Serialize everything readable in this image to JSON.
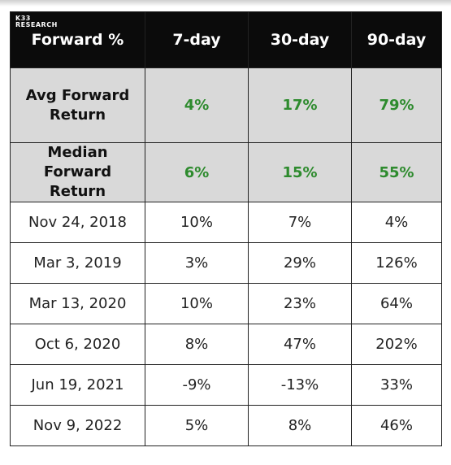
{
  "logo": [
    "K33",
    "RESEARCH"
  ],
  "table": {
    "columns": [
      "Forward %",
      "7-day",
      "30-day",
      "90-day"
    ],
    "summary_rows": [
      [
        "Avg Forward Return",
        "4%",
        "17%",
        "79%"
      ],
      [
        "Median Forward Return",
        "6%",
        "15%",
        "55%"
      ]
    ],
    "rows": [
      [
        "Nov 24, 2018",
        "10%",
        "7%",
        "4%"
      ],
      [
        "Mar 3, 2019",
        "3%",
        "29%",
        "126%"
      ],
      [
        "Mar 13, 2020",
        "10%",
        "23%",
        "64%"
      ],
      [
        "Oct 6, 2020",
        "8%",
        "47%",
        "202%"
      ],
      [
        "Jun 19, 2021",
        "-9%",
        "-13%",
        "33%"
      ],
      [
        "Nov 9, 2022",
        "5%",
        "8%",
        "46%"
      ]
    ]
  }
}
